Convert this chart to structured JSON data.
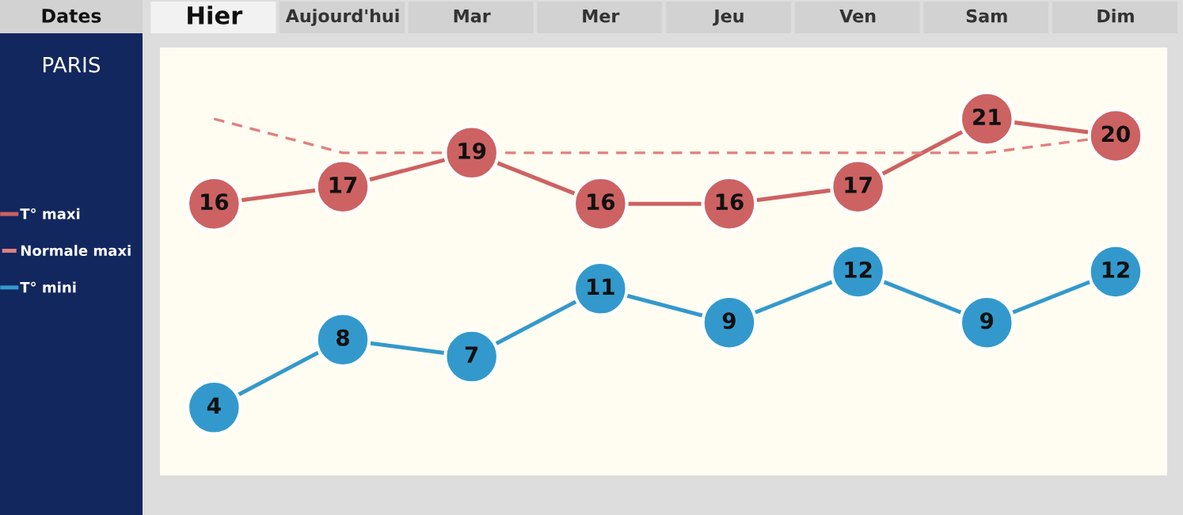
{
  "chart_data": {
    "type": "line",
    "title": "PARIS",
    "xlabel": "Dates",
    "categories": [
      "Hier",
      "Aujourd'hui",
      "Mar",
      "Mer",
      "Jeu",
      "Ven",
      "Sam",
      "Dim"
    ],
    "series": [
      {
        "name": "T° maxi",
        "color": "#cd6262",
        "values": [
          16,
          17,
          19,
          16,
          16,
          17,
          21,
          20
        ],
        "value_labels": [
          "16",
          "17",
          "19",
          "16",
          "16",
          "17",
          "21",
          "20"
        ],
        "marker": "circle",
        "line_style": "solid"
      },
      {
        "name": "Normale maxi",
        "color": "#e08080",
        "values": [
          21,
          19,
          19,
          19,
          19,
          19,
          19,
          20
        ],
        "marker": "none",
        "line_style": "dashed"
      },
      {
        "name": "T° mini",
        "color": "#3399cc",
        "values": [
          4,
          8,
          7,
          11,
          9,
          12,
          9,
          12
        ],
        "value_labels": [
          "4",
          "8",
          "7",
          "11",
          "9",
          "12",
          "9",
          "12"
        ],
        "marker": "circle",
        "line_style": "solid"
      }
    ],
    "legend": "left"
  }
}
